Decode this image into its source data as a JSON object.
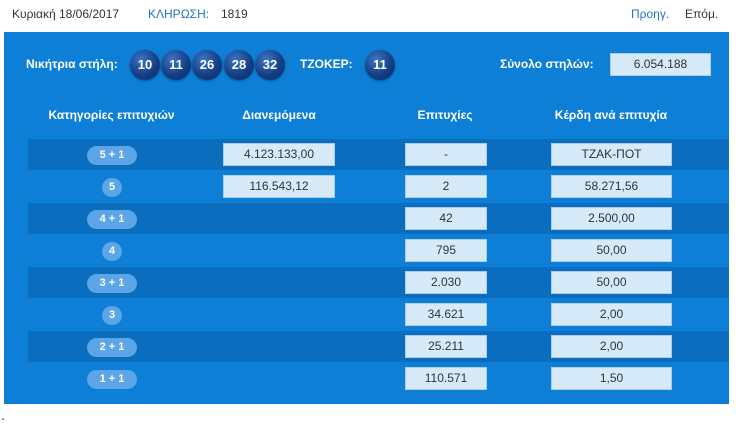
{
  "header": {
    "date": "Κυριακή 18/06/2017",
    "draw_label": "ΚΛΗΡΩΣΗ:",
    "draw_number": "1819",
    "prev_label": "Προηγ.",
    "next_label": "Επόμ."
  },
  "winning": {
    "label": "Νικήτρια στήλη:",
    "numbers": [
      "10",
      "11",
      "26",
      "28",
      "32"
    ],
    "joker_label": "ΤΖΟΚΕΡ:",
    "joker": "11",
    "total_label": "Σύνολο στηλών:",
    "total": "6.054.188"
  },
  "table": {
    "headers": [
      "Κατηγορίες επιτυχιών",
      "Διανεμόμενα",
      "Επιτυχίες",
      "Κέρδη ανά επιτυχία"
    ],
    "rows": [
      {
        "category": "5 + 1",
        "distributed": "4.123.133,00",
        "winners": "-",
        "prize": "ΤΖΑΚ-ΠΟΤ"
      },
      {
        "category": "5",
        "distributed": "116.543,12",
        "winners": "2",
        "prize": "58.271,56"
      },
      {
        "category": "4 + 1",
        "distributed": "",
        "winners": "42",
        "prize": "2.500,00"
      },
      {
        "category": "4",
        "distributed": "",
        "winners": "795",
        "prize": "50,00"
      },
      {
        "category": "3 + 1",
        "distributed": "",
        "winners": "2.030",
        "prize": "50,00"
      },
      {
        "category": "3",
        "distributed": "",
        "winners": "34.621",
        "prize": "2,00"
      },
      {
        "category": "2 + 1",
        "distributed": "",
        "winners": "25.211",
        "prize": "2,00"
      },
      {
        "category": "1 + 1",
        "distributed": "",
        "winners": "110.571",
        "prize": "1,50"
      }
    ]
  },
  "colors": {
    "panel": "#0d7fd6",
    "row_dark": "#0b6dbe",
    "cell_bg": "#d7eafa",
    "link": "#1f73c9",
    "ball": "#143f85"
  }
}
